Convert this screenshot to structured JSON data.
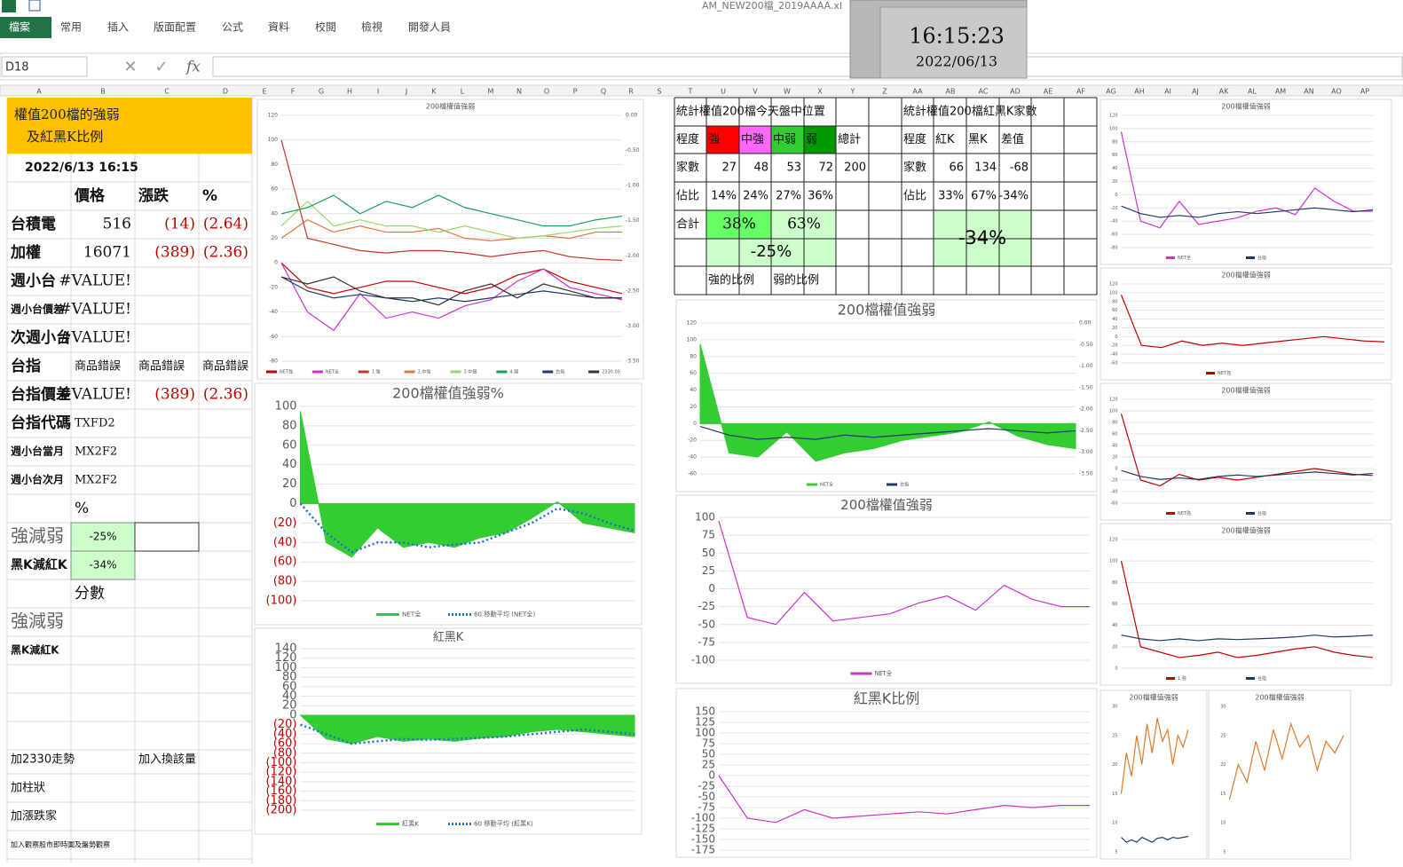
{
  "ribbon": {
    "file_name": "AM_NEW200檔_2019AAAA.xl",
    "tabs": [
      "檔案",
      "常用",
      "插入",
      "版面配置",
      "公式",
      "資料",
      "校閱",
      "檢視",
      "開發人員"
    ]
  },
  "clock": {
    "time": "16:15:23",
    "date": "2022/06/13"
  },
  "formula_bar": {
    "name_box": "D18",
    "fx": "fx"
  },
  "columns": [
    "A",
    "B",
    "C",
    "D",
    "E",
    "F",
    "G",
    "H",
    "I",
    "J",
    "K",
    "L",
    "M",
    "N",
    "O",
    "P",
    "Q",
    "R",
    "S",
    "T",
    "U",
    "V",
    "W",
    "X",
    "Y",
    "Z",
    "AA",
    "AB",
    "AC",
    "AD",
    "AE",
    "AF",
    "AG",
    "AH",
    "AI",
    "AJ",
    "AK",
    "AL",
    "AM",
    "AN",
    "AO",
    "AP"
  ],
  "sheet": {
    "header": [
      "權值200檔的強弱",
      "及紅黑K比例"
    ],
    "rows": [
      [
        "2022/6/13 16:15",
        null,
        null,
        null
      ],
      [
        null,
        "價格",
        "漲跌",
        "%"
      ],
      [
        "台積電",
        "516",
        "(14)",
        "(2.64)"
      ],
      [
        "加權",
        "16071",
        "(389)",
        "(2.36)"
      ],
      [
        "週小台",
        "#VALUE!",
        null,
        null
      ],
      [
        "週小台價差",
        "#VALUE!",
        null,
        null
      ],
      [
        "次週小台",
        "#VALUE!",
        null,
        null
      ],
      [
        "台指",
        "商品錯誤",
        "商品錯誤",
        "商品錯誤"
      ],
      [
        "台指價差",
        "#VALUE!",
        "(389)",
        "(2.36)"
      ],
      [
        "台指代碼",
        "TXFD2",
        null,
        null
      ],
      [
        "週小台當月",
        "MX2F2",
        null,
        null
      ],
      [
        "週小台次月",
        "MX2F2",
        null,
        null
      ],
      [
        null,
        "%",
        null,
        null
      ],
      [
        "強減弱",
        "-25%",
        null,
        null
      ],
      [
        "黑K減紅K",
        "-34%",
        null,
        null
      ],
      [
        null,
        "分數",
        null,
        null
      ],
      [
        "強減弱",
        null,
        null,
        null
      ],
      [
        "黑K減紅K",
        null,
        null,
        null
      ],
      [
        null,
        null,
        null,
        null
      ],
      [
        null,
        null,
        null,
        null
      ],
      [
        null,
        null,
        null,
        null
      ],
      [
        "加2330走勢",
        null,
        "加入換該量",
        null
      ],
      [
        "加柱狀",
        null,
        null,
        null
      ],
      [
        "加漲跌家",
        null,
        null,
        null
      ],
      [
        "加入觀察股市即時圖及盤勢觀察",
        null,
        null,
        null
      ]
    ]
  },
  "stats_table": {
    "rows": [
      [
        "統計權值200檔今天盤中位置",
        null,
        null,
        null,
        null,
        null,
        null,
        "統計權值200檔紅黑K家數",
        null,
        null,
        null,
        null,
        null
      ],
      [
        "程度",
        "強",
        "中強",
        "中弱",
        "弱",
        "總計",
        null,
        "程度",
        "紅K",
        "黑K",
        "差值",
        null,
        null
      ],
      [
        "家數",
        "27",
        "48",
        "53",
        "72",
        "200",
        null,
        "家數",
        "66",
        "134",
        "-68",
        null,
        null
      ],
      [
        "佔比",
        "14%",
        "24%",
        "27%",
        "36%",
        null,
        null,
        "佔比",
        "33%",
        "67%",
        "-34%",
        null,
        null
      ],
      [
        "合計",
        null,
        null,
        null,
        null,
        null,
        null,
        null,
        null,
        null,
        null,
        null,
        null
      ],
      [
        null,
        null,
        null,
        null,
        null,
        null,
        null,
        null,
        null,
        null,
        null,
        null,
        null
      ],
      [
        null,
        "強的比例",
        null,
        "弱的比例",
        null,
        null,
        null,
        null,
        null,
        null,
        null,
        null,
        null
      ]
    ],
    "merged": {
      "strong_total": "38%",
      "weak_total": "63%",
      "net": "-25%",
      "red_black_net": "-34%"
    }
  },
  "chart_data": [
    {
      "type": "line",
      "title": "200檔權值強弱",
      "ylim": [
        -80,
        120
      ],
      "yticks": [
        -80,
        -60,
        -40,
        -20,
        0,
        20,
        40,
        60,
        80,
        100,
        120
      ],
      "y2lim": [
        -3.5,
        0
      ],
      "y2ticks": [
        {
          "value": 0,
          "label": "0.00"
        },
        {
          "value": -0.5,
          "label": "-0.50"
        },
        {
          "value": -1,
          "label": "-1.00"
        },
        {
          "value": -1.5,
          "label": "-1.50"
        },
        {
          "value": -2,
          "label": "-2.00"
        },
        {
          "value": -2.5,
          "label": "-2.50"
        },
        {
          "value": -3,
          "label": "-3.00"
        },
        {
          "value": -3.5,
          "label": "-3.50"
        }
      ],
      "grid": true,
      "series": [
        {
          "name": "NET強",
          "color": "#c00000",
          "values": [
            0,
            -20,
            -25,
            -20,
            -15,
            -15,
            -20,
            -25,
            -20,
            -10,
            -5,
            -15,
            -20,
            -25
          ]
        },
        {
          "name": "NET全",
          "color": "#cc33cc",
          "values": [
            0,
            -40,
            -55,
            -25,
            -45,
            -40,
            -45,
            -35,
            -30,
            -15,
            -5,
            -20,
            -25,
            -30
          ]
        },
        {
          "name": "1.強",
          "color": "#c0392b",
          "values": [
            100,
            20,
            15,
            10,
            8,
            10,
            10,
            8,
            5,
            8,
            10,
            5,
            3,
            2
          ]
        },
        {
          "name": "2.中強",
          "color": "#e8743b",
          "values": [
            20,
            35,
            25,
            30,
            25,
            25,
            28,
            20,
            18,
            20,
            22,
            20,
            25,
            25
          ]
        },
        {
          "name": "3.中弱",
          "color": "#9bd46a",
          "values": [
            30,
            50,
            30,
            35,
            30,
            30,
            25,
            30,
            25,
            20,
            22,
            25,
            28,
            30
          ]
        },
        {
          "name": "4.弱",
          "color": "#1a9e5c",
          "values": [
            40,
            45,
            55,
            40,
            50,
            45,
            55,
            45,
            40,
            35,
            30,
            30,
            35,
            38
          ]
        },
        {
          "name": "台指",
          "color": "#1f3864",
          "axis": "y2",
          "values": [
            -2.3,
            -2.5,
            -2.6,
            -2.55,
            -2.6,
            -2.65,
            -2.6,
            -2.65,
            -2.6,
            -2.55,
            -2.5,
            -2.55,
            -2.6,
            -2.6
          ]
        },
        {
          "name": "2330.00",
          "color": "#333333",
          "axis": "y2",
          "values": [
            -2.3,
            -2.4,
            -2.3,
            -2.5,
            -2.6,
            -2.6,
            -2.7,
            -2.5,
            -2.4,
            -2.6,
            -2.4,
            -2.5,
            -2.6,
            -2.6
          ]
        }
      ]
    },
    {
      "type": "line",
      "title": "200檔權值強弱%",
      "ylim": [
        -100,
        100
      ],
      "yticks": [
        {
          "value": -100,
          "label": "(100)"
        },
        {
          "value": -80,
          "label": "(80)"
        },
        {
          "value": -60,
          "label": "(60)"
        },
        {
          "value": -40,
          "label": "(40)"
        },
        {
          "value": -20,
          "label": "(20)"
        },
        0,
        20,
        40,
        60,
        80,
        100
      ],
      "negative_tick_color": "#c00000",
      "grid": true,
      "series": [
        {
          "name": "NET全",
          "color": "#33cc33",
          "kind": "area",
          "values": [
            95,
            -40,
            -55,
            -25,
            -45,
            -40,
            -45,
            -35,
            -30,
            -15,
            2,
            -20,
            -25,
            -30
          ]
        },
        {
          "name": "60 移動平均 (NET全)",
          "color": "#1f6fd0",
          "kind": "dotted",
          "values": [
            0,
            -30,
            -50,
            -40,
            -40,
            -45,
            -42,
            -40,
            -30,
            -20,
            -5,
            -10,
            -20,
            -28
          ]
        }
      ]
    },
    {
      "type": "line",
      "title": "紅黑K",
      "ylim": [
        -200,
        140
      ],
      "yticks": [
        {
          "value": -200,
          "label": "(200)"
        },
        {
          "value": -180,
          "label": "(180)"
        },
        {
          "value": -160,
          "label": "(160)"
        },
        {
          "value": -140,
          "label": "(140)"
        },
        {
          "value": -120,
          "label": "(120)"
        },
        {
          "value": -100,
          "label": "(100)"
        },
        {
          "value": -80,
          "label": "(80)"
        },
        {
          "value": -60,
          "label": "(60)"
        },
        {
          "value": -40,
          "label": "(40)"
        },
        {
          "value": -20,
          "label": "(20)"
        },
        0,
        20,
        40,
        60,
        80,
        100,
        120,
        140
      ],
      "negative_tick_color": "#c00000",
      "grid": true,
      "series": [
        {
          "name": "紅黑K",
          "color": "#33cc33",
          "kind": "area",
          "values": [
            0,
            -50,
            -60,
            -45,
            -55,
            -50,
            -55,
            -48,
            -45,
            -35,
            -30,
            -35,
            -40,
            -45
          ]
        },
        {
          "name": "60 移動平均 (紅黑K)",
          "color": "#1f6fd0",
          "kind": "dotted",
          "values": [
            -20,
            -40,
            -60,
            -55,
            -50,
            -52,
            -50,
            -48,
            -45,
            -40,
            -35,
            -30,
            -35,
            -40
          ]
        }
      ]
    },
    {
      "type": "line",
      "title": "200檔權值強弱",
      "ylim": [
        -60,
        120
      ],
      "yticks": [
        -60,
        -40,
        -20,
        0,
        20,
        40,
        60,
        80,
        100,
        120
      ],
      "y2lim": [
        -3.5,
        0
      ],
      "y2ticks": [
        {
          "value": 0,
          "label": "0.00"
        },
        {
          "value": -0.5,
          "label": "-0.50"
        },
        {
          "value": -1,
          "label": "-1.00"
        },
        {
          "value": -1.5,
          "label": "-1.50"
        },
        {
          "value": -2,
          "label": "-2.00"
        },
        {
          "value": -2.5,
          "label": "-2.50"
        },
        {
          "value": -3,
          "label": "-3.00"
        },
        {
          "value": -3.5,
          "label": "-3.50"
        }
      ],
      "grid": true,
      "series": [
        {
          "name": "NET全",
          "color": "#33cc33",
          "kind": "area",
          "values": [
            95,
            -35,
            -40,
            -10,
            -45,
            -35,
            -30,
            -20,
            -15,
            -10,
            2,
            -15,
            -25,
            -30
          ]
        },
        {
          "name": "台指",
          "color": "#1f3864",
          "axis": "y2",
          "values": [
            -2.4,
            -2.6,
            -2.7,
            -2.65,
            -2.7,
            -2.6,
            -2.65,
            -2.6,
            -2.55,
            -2.5,
            -2.45,
            -2.5,
            -2.55,
            -2.5
          ]
        }
      ]
    },
    {
      "type": "line",
      "title": "200檔權值強弱",
      "ylim": [
        -100,
        100
      ],
      "yticks": [
        -100,
        -75,
        -50,
        -25,
        0,
        25,
        50,
        75,
        100
      ],
      "grid": true,
      "series": [
        {
          "name": "NET全",
          "color": "#cc33cc",
          "values": [
            95,
            -40,
            -50,
            -5,
            -45,
            -40,
            -35,
            -20,
            -10,
            -30,
            5,
            -15,
            -25,
            -25
          ]
        }
      ]
    },
    {
      "type": "line",
      "title": "紅黑K比例",
      "ylim": [
        -175,
        150
      ],
      "yticks": [
        -175,
        -150,
        -125,
        -100,
        -75,
        -50,
        -25,
        0,
        25,
        50,
        75,
        100,
        125,
        150
      ],
      "grid": true,
      "series": [
        {
          "color": "#cc33cc",
          "values": [
            0,
            -100,
            -110,
            -80,
            -100,
            -95,
            -90,
            -85,
            -90,
            -80,
            -70,
            -75,
            -70,
            -70
          ]
        }
      ]
    },
    {
      "type": "line",
      "title": "200檔權值強弱",
      "ylim": [
        -80,
        120
      ],
      "yticks": [
        -80,
        -60,
        -40,
        -20,
        0,
        20,
        40,
        60,
        80,
        100,
        120
      ],
      "y2lim": [
        -3.5,
        0
      ],
      "grid": true,
      "series": [
        {
          "name": "NET全",
          "color": "#cc33cc",
          "values": [
            95,
            -40,
            -50,
            -10,
            -45,
            -40,
            -35,
            -25,
            -20,
            -30,
            10,
            -10,
            -25,
            -25
          ]
        },
        {
          "name": "台指",
          "color": "#1f3864",
          "axis": "y2",
          "values": [
            -2.4,
            -2.6,
            -2.7,
            -2.65,
            -2.7,
            -2.6,
            -2.55,
            -2.6,
            -2.55,
            -2.5,
            -2.45,
            -2.5,
            -2.55,
            -2.5
          ]
        }
      ]
    },
    {
      "type": "line",
      "title": "200檔權值強弱",
      "ylim": [
        -60,
        120
      ],
      "yticks": [
        -60,
        -40,
        -20,
        0,
        20,
        40,
        60,
        80,
        100,
        120
      ],
      "grid": true,
      "series": [
        {
          "name": "NET強",
          "color": "#c00000",
          "values": [
            95,
            -20,
            -25,
            -10,
            -20,
            -15,
            -20,
            -15,
            -10,
            -5,
            0,
            -5,
            -10,
            -12
          ]
        }
      ]
    },
    {
      "type": "line",
      "title": "200檔權值強弱",
      "ylim": [
        -60,
        120
      ],
      "yticks": [
        -60,
        -40,
        -20,
        0,
        20,
        40,
        60,
        80,
        100,
        120
      ],
      "y2lim": [
        -3.5,
        0
      ],
      "grid": true,
      "series": [
        {
          "name": "NET強",
          "color": "#c00000",
          "values": [
            95,
            -20,
            -30,
            -10,
            -20,
            -15,
            -20,
            -15,
            -10,
            -5,
            0,
            -5,
            -10,
            -12
          ]
        },
        {
          "name": "台指",
          "color": "#1f3864",
          "axis": "y2",
          "values": [
            -2.4,
            -2.6,
            -2.7,
            -2.65,
            -2.7,
            -2.6,
            -2.55,
            -2.6,
            -2.55,
            -2.5,
            -2.45,
            -2.5,
            -2.55,
            -2.5
          ]
        }
      ]
    },
    {
      "type": "line",
      "title": "200檔權值強弱",
      "ylim": [
        0,
        120
      ],
      "yticks": [
        0,
        20,
        40,
        60,
        80,
        100,
        120
      ],
      "y2lim": [
        -3.5,
        0
      ],
      "grid": true,
      "series": [
        {
          "name": "1.強",
          "color": "#c00000",
          "values": [
            100,
            20,
            15,
            10,
            12,
            15,
            10,
            12,
            15,
            18,
            20,
            15,
            12,
            10
          ]
        },
        {
          "name": "台指",
          "color": "#1f3864",
          "axis": "y2",
          "values": [
            -2.6,
            -2.7,
            -2.75,
            -2.7,
            -2.75,
            -2.7,
            -2.72,
            -2.7,
            -2.68,
            -2.65,
            -2.6,
            -2.65,
            -2.63,
            -2.6
          ]
        }
      ]
    },
    {
      "type": "line",
      "title": "200檔權值強弱",
      "ylim": [
        5,
        30
      ],
      "yticks": [
        5,
        10,
        15,
        20,
        25,
        30
      ],
      "y2lim": [
        -3,
        0
      ],
      "grid": false,
      "series": [
        {
          "color": "#e07b28",
          "values": [
            15,
            22,
            18,
            25,
            20,
            27,
            22,
            28,
            24,
            26,
            20,
            25,
            23,
            26
          ]
        },
        {
          "color": "#1f3864",
          "axis": "y2",
          "values": [
            -2.7,
            -2.8,
            -2.75,
            -2.8,
            -2.7,
            -2.75,
            -2.8,
            -2.72,
            -2.7,
            -2.75,
            -2.7,
            -2.72,
            -2.7,
            -2.68
          ]
        }
      ]
    },
    {
      "type": "line",
      "title": "200檔權值強弱",
      "ylim": [
        5,
        30
      ],
      "yticks": [
        5,
        10,
        15,
        20,
        25,
        30
      ],
      "grid": false,
      "series": [
        {
          "color": "#e07b28",
          "values": [
            14,
            20,
            17,
            24,
            19,
            26,
            21,
            27,
            23,
            25,
            19,
            24,
            22,
            25
          ]
        }
      ]
    }
  ]
}
